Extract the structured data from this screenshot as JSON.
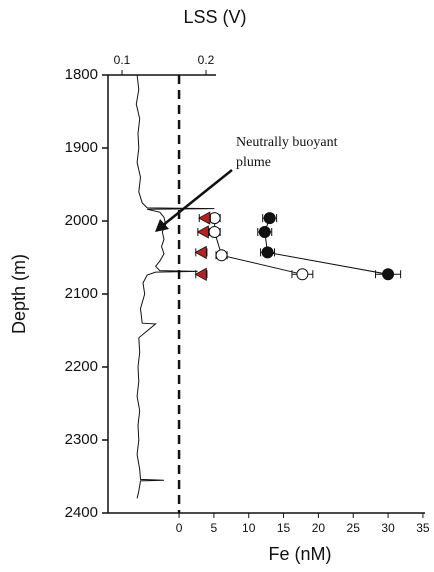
{
  "chart_data": {
    "type": "depth-profile",
    "x_label": "Fe (nM)",
    "x2_label": "LSS (V)",
    "y_label": "Depth (m)",
    "annotation": [
      "Neutrally buoyant",
      "plume"
    ],
    "ylim": [
      1800,
      2400
    ],
    "y_inverted": true,
    "yticks": [
      1800,
      1900,
      2000,
      2100,
      2200,
      2300,
      2400
    ],
    "xlim": [
      -10.2,
      35.3
    ],
    "xticks": [
      0,
      5,
      10,
      15,
      20,
      25,
      30,
      35
    ],
    "x2lim": [
      0.0833,
      0.4607
    ],
    "x2ticks": [
      0.1,
      0.2
    ],
    "reference_line_x": 0,
    "lss_profile": {
      "color": "#111111",
      "depth": [
        1800,
        1820,
        1840,
        1860,
        1880,
        1900,
        1920,
        1940,
        1960,
        1975,
        1982,
        1983,
        1984,
        1988,
        1995,
        2005,
        2015,
        2025,
        2035,
        2045,
        2055,
        2062,
        2068,
        2069,
        2070,
        2074,
        2085,
        2100,
        2120,
        2140,
        2141,
        2160,
        2180,
        2200,
        2220,
        2240,
        2260,
        2280,
        2300,
        2320,
        2340,
        2354,
        2355,
        2356,
        2370,
        2380
      ],
      "lss": [
        0.118,
        0.12,
        0.117,
        0.121,
        0.119,
        0.12,
        0.118,
        0.122,
        0.12,
        0.124,
        0.13,
        0.21,
        0.13,
        0.145,
        0.15,
        0.152,
        0.148,
        0.15,
        0.147,
        0.15,
        0.145,
        0.14,
        0.145,
        0.19,
        0.14,
        0.13,
        0.125,
        0.127,
        0.122,
        0.124,
        0.14,
        0.12,
        0.121,
        0.119,
        0.12,
        0.118,
        0.121,
        0.119,
        0.12,
        0.118,
        0.121,
        0.122,
        0.15,
        0.122,
        0.12,
        0.118
      ]
    },
    "series": [
      {
        "marker": "filled-circle",
        "color": "#111111",
        "depth": [
          1996,
          2015,
          2043,
          2073
        ],
        "values": [
          13,
          12.3,
          12.7,
          30
        ],
        "xerr": [
          1,
          1,
          1,
          1.8
        ]
      },
      {
        "marker": "open-circle",
        "color": "#111111",
        "depth": [
          1996,
          2015,
          2047,
          2073
        ],
        "values": [
          5.1,
          5.1,
          6.1,
          17.7
        ],
        "xerr": [
          0.8,
          0.8,
          0.8,
          1.5
        ]
      },
      {
        "marker": "triangle",
        "color": "#b22222",
        "depth": [
          1996,
          2015,
          2043,
          2073
        ],
        "values": [
          3.7,
          3.5,
          3.2,
          3.2
        ],
        "xerr": [
          0.8,
          0.8,
          0.8,
          0.8
        ]
      }
    ]
  }
}
